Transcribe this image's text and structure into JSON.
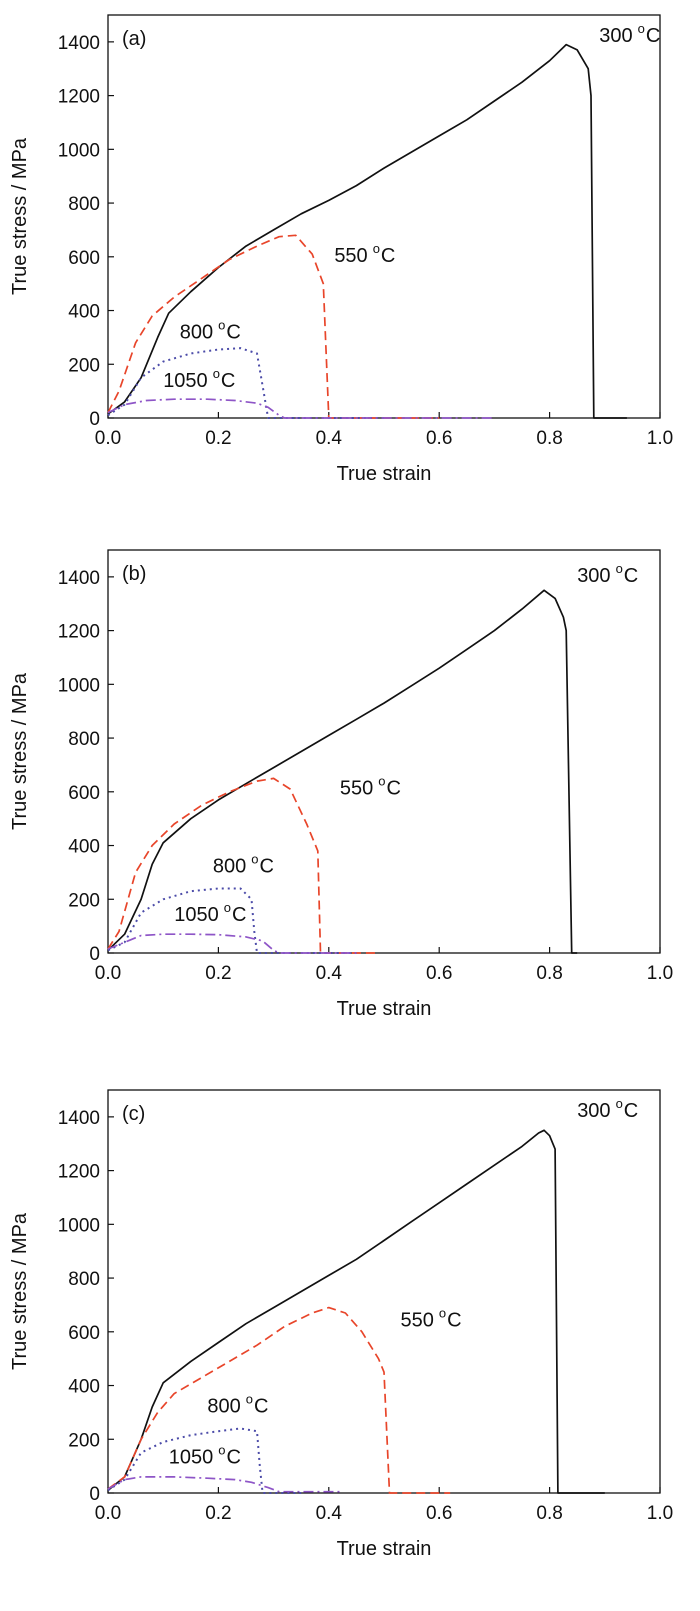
{
  "chart_data": [
    {
      "type": "line",
      "panel_label": "(a)",
      "xlabel": "True strain",
      "ylabel": "True stress / MPa",
      "xlim": [
        0.0,
        1.0
      ],
      "ylim": [
        0,
        1500
      ],
      "xticks": [
        "0.0",
        "0.2",
        "0.4",
        "0.6",
        "0.8",
        "1.0"
      ],
      "yticks": [
        "0",
        "200",
        "400",
        "600",
        "800",
        "1000",
        "1200",
        "1400"
      ],
      "grid": false,
      "series": [
        {
          "name": "300 °C",
          "temp": "300",
          "color": "#111111",
          "dash": "solid",
          "points": [
            [
              0.0,
              15
            ],
            [
              0.03,
              60
            ],
            [
              0.06,
              150
            ],
            [
              0.09,
              300
            ],
            [
              0.11,
              390
            ],
            [
              0.15,
              470
            ],
            [
              0.2,
              560
            ],
            [
              0.25,
              640
            ],
            [
              0.3,
              700
            ],
            [
              0.35,
              760
            ],
            [
              0.4,
              810
            ],
            [
              0.45,
              865
            ],
            [
              0.5,
              930
            ],
            [
              0.55,
              990
            ],
            [
              0.6,
              1050
            ],
            [
              0.65,
              1110
            ],
            [
              0.7,
              1180
            ],
            [
              0.75,
              1250
            ],
            [
              0.8,
              1330
            ],
            [
              0.83,
              1390
            ],
            [
              0.85,
              1370
            ],
            [
              0.87,
              1300
            ],
            [
              0.875,
              1200
            ],
            [
              0.88,
              0
            ],
            [
              0.94,
              0
            ]
          ]
        },
        {
          "name": "550 °C",
          "temp": "550",
          "color": "#e8452a",
          "dash": "dashed",
          "points": [
            [
              0.0,
              20
            ],
            [
              0.02,
              100
            ],
            [
              0.05,
              280
            ],
            [
              0.08,
              380
            ],
            [
              0.12,
              450
            ],
            [
              0.17,
              520
            ],
            [
              0.22,
              590
            ],
            [
              0.27,
              640
            ],
            [
              0.31,
              675
            ],
            [
              0.34,
              680
            ],
            [
              0.37,
              610
            ],
            [
              0.39,
              500
            ],
            [
              0.4,
              0
            ],
            [
              0.6,
              0
            ]
          ]
        },
        {
          "name": "800 °C",
          "temp": "800",
          "color": "#4b4ba8",
          "dash": "dotted",
          "points": [
            [
              0.0,
              10
            ],
            [
              0.03,
              50
            ],
            [
              0.06,
              150
            ],
            [
              0.1,
              210
            ],
            [
              0.15,
              240
            ],
            [
              0.2,
              255
            ],
            [
              0.24,
              260
            ],
            [
              0.27,
              240
            ],
            [
              0.28,
              120
            ],
            [
              0.29,
              0
            ],
            [
              0.5,
              0
            ]
          ]
        },
        {
          "name": "1050 °C",
          "temp": "1050",
          "color": "#8e55c7",
          "dash": "dashdot",
          "points": [
            [
              0.0,
              20
            ],
            [
              0.03,
              50
            ],
            [
              0.07,
              65
            ],
            [
              0.12,
              70
            ],
            [
              0.18,
              70
            ],
            [
              0.23,
              65
            ],
            [
              0.27,
              55
            ],
            [
              0.29,
              40
            ],
            [
              0.31,
              10
            ],
            [
              0.32,
              0
            ],
            [
              0.7,
              0
            ]
          ]
        }
      ],
      "annotations": [
        {
          "value": "300",
          "unit": "C",
          "x": 0.89,
          "y": 1400
        },
        {
          "value": "550",
          "unit": "C",
          "x": 0.41,
          "y": 580
        },
        {
          "value": "800",
          "unit": "C",
          "x": 0.13,
          "y": 295
        },
        {
          "value": "1050",
          "unit": "C",
          "x": 0.1,
          "y": 115
        }
      ]
    },
    {
      "type": "line",
      "panel_label": "(b)",
      "xlabel": "True strain",
      "ylabel": "True stress / MPa",
      "xlim": [
        0.0,
        1.0
      ],
      "ylim": [
        0,
        1500
      ],
      "xticks": [
        "0.0",
        "0.2",
        "0.4",
        "0.6",
        "0.8",
        "1.0"
      ],
      "yticks": [
        "0",
        "200",
        "400",
        "600",
        "800",
        "1000",
        "1200",
        "1400"
      ],
      "grid": false,
      "series": [
        {
          "name": "300 °C",
          "temp": "300",
          "color": "#111111",
          "dash": "solid",
          "points": [
            [
              0.0,
              10
            ],
            [
              0.03,
              70
            ],
            [
              0.06,
              200
            ],
            [
              0.08,
              330
            ],
            [
              0.1,
              410
            ],
            [
              0.15,
              500
            ],
            [
              0.2,
              570
            ],
            [
              0.25,
              630
            ],
            [
              0.3,
              690
            ],
            [
              0.35,
              750
            ],
            [
              0.4,
              810
            ],
            [
              0.45,
              870
            ],
            [
              0.5,
              930
            ],
            [
              0.55,
              995
            ],
            [
              0.6,
              1060
            ],
            [
              0.65,
              1130
            ],
            [
              0.7,
              1200
            ],
            [
              0.75,
              1280
            ],
            [
              0.79,
              1350
            ],
            [
              0.81,
              1320
            ],
            [
              0.825,
              1250
            ],
            [
              0.83,
              1200
            ],
            [
              0.84,
              0
            ],
            [
              0.85,
              0
            ]
          ]
        },
        {
          "name": "550 °C",
          "temp": "550",
          "color": "#e8452a",
          "dash": "dashed",
          "points": [
            [
              0.0,
              15
            ],
            [
              0.02,
              80
            ],
            [
              0.05,
              300
            ],
            [
              0.08,
              400
            ],
            [
              0.12,
              480
            ],
            [
              0.17,
              550
            ],
            [
              0.22,
              600
            ],
            [
              0.27,
              640
            ],
            [
              0.3,
              650
            ],
            [
              0.33,
              610
            ],
            [
              0.36,
              480
            ],
            [
              0.38,
              380
            ],
            [
              0.385,
              0
            ],
            [
              0.49,
              0
            ]
          ]
        },
        {
          "name": "800 °C",
          "temp": "800",
          "color": "#4b4ba8",
          "dash": "dotted",
          "points": [
            [
              0.0,
              10
            ],
            [
              0.03,
              40
            ],
            [
              0.06,
              150
            ],
            [
              0.1,
              200
            ],
            [
              0.15,
              230
            ],
            [
              0.2,
              240
            ],
            [
              0.24,
              240
            ],
            [
              0.26,
              200
            ],
            [
              0.265,
              80
            ],
            [
              0.27,
              0
            ],
            [
              0.45,
              0
            ]
          ]
        },
        {
          "name": "1050 °C",
          "temp": "1050",
          "color": "#8e55c7",
          "dash": "dashdot",
          "points": [
            [
              0.0,
              15
            ],
            [
              0.03,
              40
            ],
            [
              0.06,
              65
            ],
            [
              0.1,
              70
            ],
            [
              0.15,
              70
            ],
            [
              0.2,
              68
            ],
            [
              0.25,
              60
            ],
            [
              0.28,
              45
            ],
            [
              0.3,
              10
            ],
            [
              0.31,
              0
            ],
            [
              0.45,
              0
            ]
          ]
        }
      ],
      "annotations": [
        {
          "value": "300",
          "unit": "C",
          "x": 0.85,
          "y": 1380
        },
        {
          "value": "550",
          "unit": "C",
          "x": 0.42,
          "y": 590
        },
        {
          "value": "800",
          "unit": "C",
          "x": 0.19,
          "y": 300
        },
        {
          "value": "1050",
          "unit": "C",
          "x": 0.12,
          "y": 120
        }
      ]
    },
    {
      "type": "line",
      "panel_label": "(c)",
      "xlabel": "True strain",
      "ylabel": "True stress / MPa",
      "xlim": [
        0.0,
        1.0
      ],
      "ylim": [
        0,
        1500
      ],
      "xticks": [
        "0.0",
        "0.2",
        "0.4",
        "0.6",
        "0.8",
        "1.0"
      ],
      "yticks": [
        "0",
        "200",
        "400",
        "600",
        "800",
        "1000",
        "1200",
        "1400"
      ],
      "grid": false,
      "series": [
        {
          "name": "300 °C",
          "temp": "300",
          "color": "#111111",
          "dash": "solid",
          "points": [
            [
              0.0,
              10
            ],
            [
              0.03,
              60
            ],
            [
              0.06,
              200
            ],
            [
              0.08,
              320
            ],
            [
              0.1,
              410
            ],
            [
              0.15,
              490
            ],
            [
              0.2,
              560
            ],
            [
              0.25,
              630
            ],
            [
              0.3,
              690
            ],
            [
              0.35,
              750
            ],
            [
              0.4,
              810
            ],
            [
              0.45,
              870
            ],
            [
              0.5,
              940
            ],
            [
              0.55,
              1010
            ],
            [
              0.6,
              1080
            ],
            [
              0.65,
              1150
            ],
            [
              0.7,
              1220
            ],
            [
              0.75,
              1290
            ],
            [
              0.78,
              1340
            ],
            [
              0.79,
              1350
            ],
            [
              0.8,
              1330
            ],
            [
              0.81,
              1280
            ],
            [
              0.815,
              0
            ],
            [
              0.9,
              0
            ]
          ]
        },
        {
          "name": "550 °C",
          "temp": "550",
          "color": "#e8452a",
          "dash": "dashed",
          "points": [
            [
              0.0,
              15
            ],
            [
              0.03,
              60
            ],
            [
              0.06,
              200
            ],
            [
              0.09,
              300
            ],
            [
              0.12,
              370
            ],
            [
              0.17,
              430
            ],
            [
              0.22,
              490
            ],
            [
              0.27,
              550
            ],
            [
              0.32,
              620
            ],
            [
              0.37,
              670
            ],
            [
              0.4,
              690
            ],
            [
              0.43,
              670
            ],
            [
              0.46,
              600
            ],
            [
              0.49,
              500
            ],
            [
              0.5,
              450
            ],
            [
              0.51,
              0
            ],
            [
              0.62,
              0
            ]
          ]
        },
        {
          "name": "800 °C",
          "temp": "800",
          "color": "#4b4ba8",
          "dash": "dotted",
          "points": [
            [
              0.0,
              10
            ],
            [
              0.03,
              50
            ],
            [
              0.06,
              150
            ],
            [
              0.1,
              190
            ],
            [
              0.15,
              215
            ],
            [
              0.2,
              230
            ],
            [
              0.24,
              240
            ],
            [
              0.27,
              230
            ],
            [
              0.275,
              100
            ],
            [
              0.28,
              0
            ],
            [
              0.35,
              0
            ]
          ]
        },
        {
          "name": "1050 °C",
          "temp": "1050",
          "color": "#8e55c7",
          "dash": "dashdot",
          "points": [
            [
              0.0,
              15
            ],
            [
              0.03,
              50
            ],
            [
              0.06,
              60
            ],
            [
              0.12,
              60
            ],
            [
              0.18,
              55
            ],
            [
              0.23,
              50
            ],
            [
              0.26,
              40
            ],
            [
              0.29,
              20
            ],
            [
              0.31,
              5
            ],
            [
              0.42,
              5
            ]
          ]
        }
      ],
      "annotations": [
        {
          "value": "300",
          "unit": "C",
          "x": 0.85,
          "y": 1400
        },
        {
          "value": "550",
          "unit": "C",
          "x": 0.53,
          "y": 620
        },
        {
          "value": "800",
          "unit": "C",
          "x": 0.18,
          "y": 300
        },
        {
          "value": "1050",
          "unit": "C",
          "x": 0.11,
          "y": 110
        }
      ]
    }
  ]
}
